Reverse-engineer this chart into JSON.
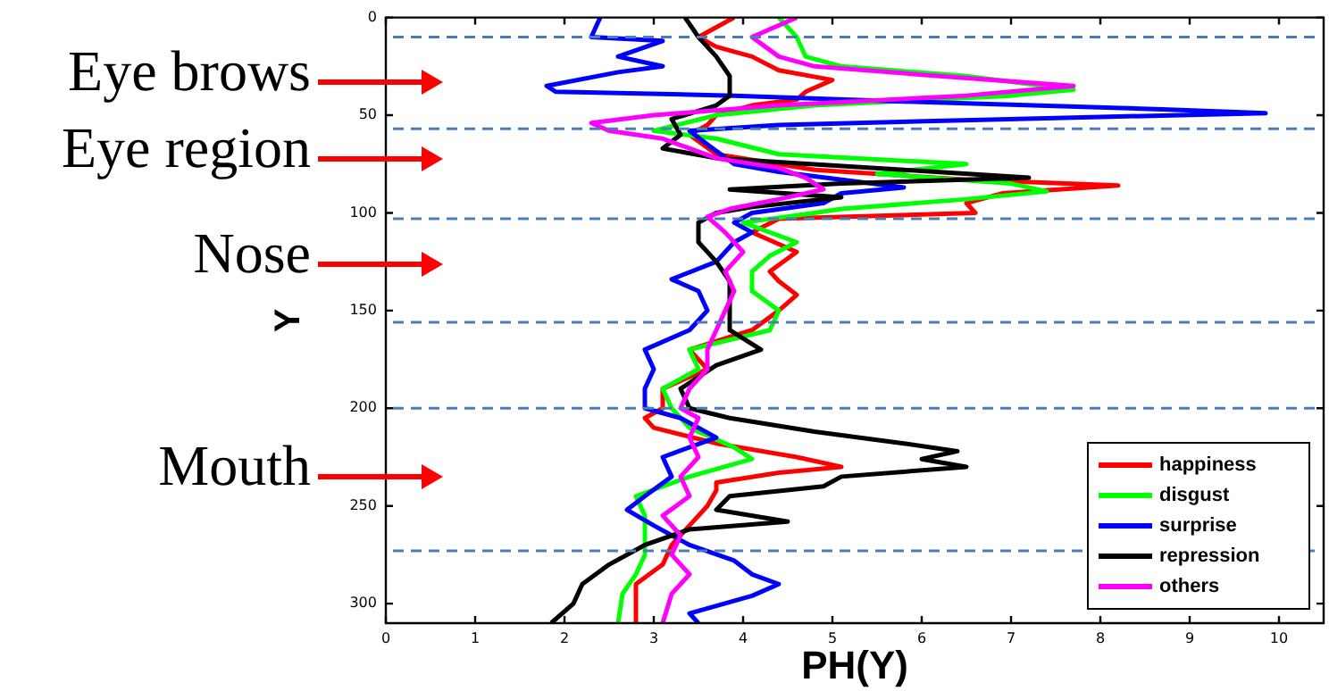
{
  "chart_data": {
    "type": "line",
    "xlabel": "PH(Y)",
    "ylabel": "Y",
    "xlim": [
      0,
      10.5
    ],
    "xticks": [
      0,
      1,
      2,
      3,
      4,
      5,
      6,
      7,
      8,
      9,
      10
    ],
    "ylim": [
      310,
      0
    ],
    "yticks": [
      0,
      50,
      100,
      150,
      200,
      250,
      300
    ],
    "grid": false,
    "legend": "bottom right",
    "marker": "none",
    "line_style": "solid",
    "series": [
      {
        "name": "happiness",
        "color": "#ff0000",
        "x": [
          3.9,
          3.5,
          3.7,
          4.1,
          4.4,
          5.0,
          4.7,
          4.6,
          4.1,
          3.7,
          3.6,
          3.4,
          3.7,
          4.8,
          6.5,
          8.2,
          6.9,
          6.5,
          6.6,
          4.4,
          4.1,
          4.6,
          4.3,
          4.4,
          4.6,
          4.4,
          4.1,
          3.4,
          3.6,
          3.1,
          3.1,
          2.9,
          3.0,
          3.7,
          4.6,
          5.1,
          4.4,
          3.7,
          3.7,
          3.6,
          3.4,
          3.2,
          3.1,
          2.8,
          2.8
        ],
        "values": [
          0,
          10,
          15,
          20,
          27,
          32,
          38,
          42,
          45,
          50,
          55,
          60,
          70,
          78,
          83,
          86,
          90,
          95,
          100,
          103,
          110,
          120,
          130,
          135,
          142,
          150,
          160,
          170,
          180,
          190,
          200,
          205,
          210,
          218,
          225,
          230,
          233,
          238,
          242,
          250,
          260,
          270,
          280,
          290,
          310
        ]
      },
      {
        "name": "disgust",
        "color": "#00ff00",
        "x": [
          4.4,
          4.6,
          4.7,
          5.1,
          6.5,
          7.7,
          7.0,
          4.8,
          3.7,
          3.0,
          3.7,
          4.4,
          6.5,
          5.5,
          7.0,
          7.4,
          6.5,
          5.1,
          4.8,
          4.0,
          4.6,
          4.3,
          4.1,
          4.1,
          4.4,
          4.3,
          3.4,
          3.5,
          3.1,
          3.2,
          3.4,
          3.9,
          4.1,
          3.4,
          2.8,
          2.9,
          2.9,
          2.8,
          2.65,
          2.6
        ],
        "values": [
          0,
          10,
          20,
          25,
          30,
          37,
          40,
          45,
          50,
          58,
          62,
          70,
          75,
          80,
          85,
          89,
          93,
          98,
          100,
          105,
          115,
          122,
          130,
          140,
          150,
          160,
          170,
          180,
          190,
          200,
          210,
          220,
          226,
          235,
          245,
          255,
          275,
          285,
          295,
          310
        ]
      },
      {
        "name": "surprise",
        "color": "#0000ff",
        "x": [
          2.4,
          2.3,
          3.1,
          2.6,
          3.1,
          2.6,
          1.8,
          1.9,
          3.9,
          5.8,
          8.7,
          9.85,
          7.9,
          4.4,
          3.4,
          3.6,
          3.9,
          4.4,
          5.8,
          5.1,
          4.9,
          4.1,
          3.9,
          4.1,
          3.9,
          3.7,
          3.2,
          3.5,
          3.6,
          3.4,
          2.9,
          3.0,
          2.9,
          2.9,
          3.3,
          3.7,
          3.1,
          3.2,
          2.9,
          2.7,
          3.0,
          3.4,
          3.9,
          4.1,
          4.4,
          4.1,
          3.4,
          3.5
        ],
        "values": [
          0,
          10,
          12,
          20,
          25,
          28,
          35,
          38,
          40,
          43,
          47,
          49,
          51,
          55,
          58,
          65,
          75,
          79,
          87,
          90,
          95,
          100,
          105,
          110,
          115,
          125,
          134,
          140,
          150,
          160,
          170,
          180,
          190,
          200,
          205,
          215,
          225,
          235,
          245,
          252,
          260,
          270,
          278,
          285,
          290,
          296,
          305,
          310
        ]
      },
      {
        "name": "repression",
        "color": "#000000",
        "x": [
          3.35,
          3.5,
          3.7,
          3.85,
          3.85,
          3.7,
          3.2,
          3.3,
          3.1,
          3.7,
          5.8,
          7.2,
          5.1,
          3.85,
          5.1,
          4.1,
          3.7,
          3.5,
          3.5,
          3.7,
          3.85,
          3.85,
          4.2,
          3.7,
          3.3,
          3.4,
          3.85,
          4.8,
          5.8,
          6.4,
          6.0,
          6.5,
          5.1,
          4.9,
          3.85,
          3.7,
          4.5,
          3.4,
          2.9,
          2.5,
          2.2,
          2.1,
          1.85
        ],
        "values": [
          0,
          10,
          20,
          30,
          40,
          45,
          52,
          60,
          67,
          72,
          78,
          82,
          85,
          88,
          92,
          97,
          100,
          105,
          115,
          125,
          135,
          160,
          170,
          178,
          190,
          200,
          205,
          212,
          218,
          222,
          226,
          230,
          235,
          240,
          245,
          252,
          258,
          262,
          270,
          280,
          290,
          300,
          310
        ]
      },
      {
        "name": "others",
        "color": "#ff00ff",
        "x": [
          4.6,
          4.1,
          4.4,
          4.8,
          6.2,
          7.7,
          6.5,
          4.4,
          3.0,
          2.3,
          2.5,
          3.1,
          3.4,
          3.7,
          4.4,
          4.7,
          4.9,
          4.4,
          3.85,
          3.6,
          3.8,
          4.0,
          3.8,
          3.9,
          3.8,
          3.7,
          3.6,
          3.6,
          3.4,
          3.3,
          3.5,
          3.4,
          3.5,
          3.3,
          3.4,
          3.1,
          3.3,
          3.2,
          3.4,
          3.2,
          3.1
        ],
        "values": [
          0,
          10,
          20,
          25,
          30,
          35,
          40,
          45,
          50,
          54,
          58,
          62,
          67,
          72,
          77,
          82,
          88,
          93,
          98,
          102,
          110,
          120,
          130,
          140,
          150,
          160,
          170,
          180,
          190,
          200,
          205,
          215,
          225,
          235,
          245,
          255,
          265,
          275,
          285,
          295,
          310
        ]
      }
    ],
    "ref_lines": [
      {
        "axis": "y",
        "value": 10,
        "color": "#4a7ebb",
        "line_style": "dashed"
      },
      {
        "axis": "y",
        "value": 57,
        "color": "#4a7ebb",
        "line_style": "dashed"
      },
      {
        "axis": "y",
        "value": 103,
        "color": "#4a7ebb",
        "line_style": "dashed"
      },
      {
        "axis": "y",
        "value": 156,
        "color": "#4a7ebb",
        "line_style": "dashed"
      },
      {
        "axis": "y",
        "value": 200,
        "color": "#4a7ebb",
        "line_style": "dashed"
      },
      {
        "axis": "y",
        "value": 273,
        "color": "#4a7ebb",
        "line_style": "dashed"
      }
    ],
    "annotations": [
      "Eye brows",
      "Eye region",
      "Nose",
      "Mouth"
    ]
  }
}
